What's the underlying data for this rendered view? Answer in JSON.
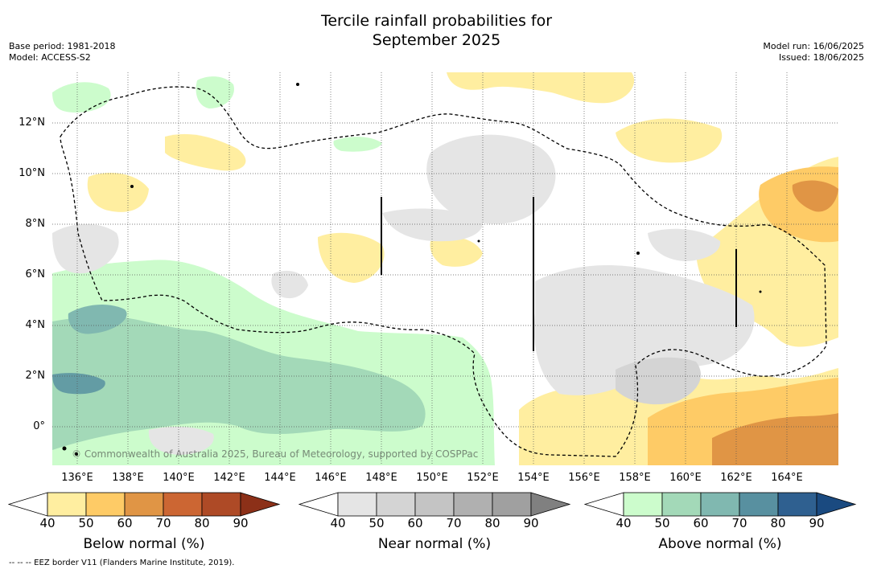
{
  "title": {
    "line1": "Tercile rainfall probabilities for",
    "line2": "September 2025"
  },
  "meta_left": {
    "base_period": "Base period: 1981-2018",
    "model": "Model: ACCESS-S2"
  },
  "meta_right": {
    "model_run": "Model run: 16/06/2025",
    "issued": "Issued: 18/06/2025"
  },
  "map": {
    "lat_labels": [
      "12°N",
      "10°N",
      "8°N",
      "6°N",
      "4°N",
      "2°N",
      "0°"
    ],
    "lon_labels": [
      "136°E",
      "138°E",
      "140°E",
      "142°E",
      "144°E",
      "146°E",
      "148°E",
      "150°E",
      "152°E",
      "154°E",
      "156°E",
      "158°E",
      "160°E",
      "162°E",
      "164°E"
    ],
    "copyright": "© Commonwealth of Australia 2025, Bureau of Meteorology, supported by COSPPac"
  },
  "colorbars": [
    {
      "title": "Below normal (%)",
      "ticks": [
        "40",
        "50",
        "60",
        "70",
        "80",
        "90"
      ],
      "colors": [
        "#ffeea0",
        "#fecb66",
        "#e09545",
        "#cc6633",
        "#ae4a26"
      ],
      "extend_color": "#8c3018"
    },
    {
      "title": "Near normal (%)",
      "ticks": [
        "40",
        "50",
        "60",
        "70",
        "80",
        "90"
      ],
      "colors": [
        "#e5e5e5",
        "#d4d4d4",
        "#c4c4c4",
        "#b0b0b0",
        "#a0a0a0"
      ],
      "extend_color": "#808080"
    },
    {
      "title": "Above normal (%)",
      "ticks": [
        "40",
        "50",
        "60",
        "70",
        "80",
        "90"
      ],
      "colors": [
        "#ccfccc",
        "#a3d9b8",
        "#80b8b0",
        "#5890a0",
        "#2f6090"
      ],
      "extend_color": "#1a4a80"
    }
  ],
  "footnote": "--  --  -- EEZ border V11 (Flanders Marine Institute, 2019)."
}
